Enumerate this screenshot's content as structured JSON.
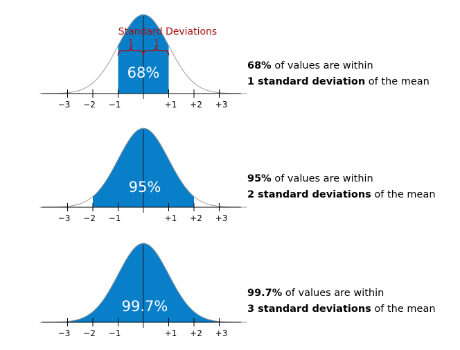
{
  "colors": {
    "fill": "#0a7fc9",
    "curve": "#9a9a9a",
    "axis": "#000000",
    "brace": "#a31515",
    "percent_text": "#ffffff"
  },
  "sd_annotation": {
    "title": "Standard Deviations",
    "left_label": "1",
    "right_label": "1"
  },
  "panels": [
    {
      "sigma": 1,
      "percent_label": "68%",
      "ticks": [
        "−3",
        "−2",
        "−1",
        "+1",
        "+2",
        "+3"
      ],
      "caption": {
        "bold1": "68%",
        "text1": " of values are within",
        "bold2": "1 standard deviation",
        "text2": " of the mean"
      }
    },
    {
      "sigma": 2,
      "percent_label": "95%",
      "ticks": [
        "−3",
        "−2",
        "−1",
        "+1",
        "+2",
        "+3"
      ],
      "caption": {
        "bold1": "95%",
        "text1": " of values are within",
        "bold2": "2 standard deviations",
        "text2": " of the mean"
      }
    },
    {
      "sigma": 3,
      "percent_label": "99.7%",
      "ticks": [
        "−3",
        "−2",
        "−1",
        "+1",
        "+2",
        "+3"
      ],
      "caption": {
        "bold1": "99.7%",
        "text1": " of values are within",
        "bold2": "3 standard deviations",
        "text2": " of the mean"
      }
    }
  ]
}
